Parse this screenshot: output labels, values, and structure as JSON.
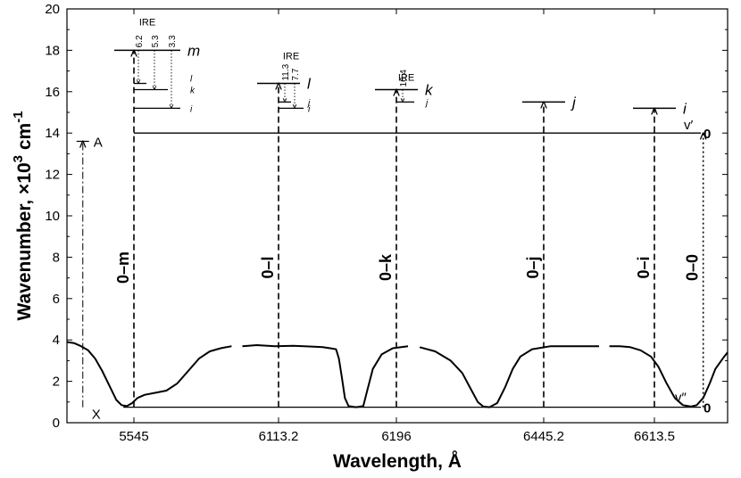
{
  "chart_data": {
    "type": "line",
    "xlabel": "Wavelength, Å",
    "ylabel_main": "Wavenumber, ×10",
    "ylabel_exp": "3",
    "ylabel_unit": " cm",
    "ylabel_unit_exp": "-1",
    "ylim": [
      0,
      20
    ],
    "yticks": [
      "0",
      "2",
      "4",
      "6",
      "8",
      "10",
      "12",
      "14",
      "16",
      "18",
      "20"
    ],
    "xticks": [
      {
        "pos": 1,
        "label": "5545"
      },
      {
        "pos": 3,
        "label": "6113.2"
      },
      {
        "pos": 4.6,
        "label": "6196"
      },
      {
        "pos": 6.5,
        "label": "6445.2"
      },
      {
        "pos": 8.1,
        "label": "6613.5"
      }
    ],
    "xlim": [
      -0.9,
      9.0
    ],
    "state_labels": {
      "upper": "A",
      "lower": "X"
    },
    "v_labels": {
      "upper": "v′",
      "lower": "v″",
      "upper_zero": "0",
      "lower_zero": "0"
    },
    "upper_level_y": 14.0,
    "lower_level_y": 0.75,
    "a_state_y": 13.6,
    "levels": [
      {
        "name": "m",
        "y": 18.0,
        "x_center": 1
      },
      {
        "name": "l",
        "y": 16.4,
        "x_center": 3
      },
      {
        "name": "k",
        "y": 16.1,
        "x_center": 4.6
      },
      {
        "name": "j",
        "y": 15.5,
        "x_center": 6.5
      },
      {
        "name": "i",
        "y": 15.2,
        "x_center": 8.1
      }
    ],
    "transitions": [
      {
        "label": "0–m",
        "x": 1,
        "y_top": 18.0
      },
      {
        "label": "0–l",
        "x": 3,
        "y_top": 16.4
      },
      {
        "label": "0–k",
        "x": 4.6,
        "y_top": 16.1
      },
      {
        "label": "0–j",
        "x": 6.5,
        "y_top": 15.5
      },
      {
        "label": "0–i",
        "x": 8.1,
        "y_top": 15.2
      },
      {
        "label": "0–0",
        "x": 8.7,
        "y_top": 14.0
      }
    ],
    "ire_groups": [
      {
        "label": "IRE",
        "values": [
          "6.2",
          "5.3",
          "3.3"
        ],
        "sublevels": [
          {
            "name": "l",
            "y": 16.4
          },
          {
            "name": "k",
            "y": 16.1
          },
          {
            "name": "i",
            "y": 15.2
          }
        ]
      },
      {
        "label": "IRE",
        "values": [
          "11.3",
          "7.7"
        ],
        "sublevels": [
          {
            "name": "j",
            "y": 15.5
          },
          {
            "name": "i",
            "y": 15.2
          }
        ]
      },
      {
        "label": "IRE",
        "values": [
          "16.4"
        ],
        "sublevels": [
          {
            "name": "j",
            "y": 15.5
          }
        ]
      }
    ],
    "spectrum": {
      "segments": [
        [
          [
            -0.9,
            3.9
          ],
          [
            -0.7,
            3.85
          ],
          [
            -0.5,
            3.7
          ],
          [
            -0.3,
            3.5
          ],
          [
            -0.1,
            3.1
          ],
          [
            0.1,
            2.5
          ],
          [
            0.3,
            1.8
          ],
          [
            0.5,
            1.1
          ],
          [
            0.65,
            0.85
          ],
          [
            0.8,
            0.8
          ],
          [
            0.95,
            0.95
          ],
          [
            1.05,
            1.2
          ],
          [
            1.15,
            1.35
          ],
          [
            1.3,
            1.45
          ],
          [
            1.45,
            1.55
          ],
          [
            1.6,
            1.9
          ],
          [
            1.75,
            2.5
          ],
          [
            1.9,
            3.1
          ],
          [
            2.05,
            3.45
          ],
          [
            2.2,
            3.6
          ],
          [
            2.35,
            3.7
          ]
        ],
        [
          [
            2.5,
            3.7
          ],
          [
            2.7,
            3.75
          ],
          [
            2.95,
            3.7
          ],
          [
            3.2,
            3.72
          ],
          [
            3.45,
            3.68
          ],
          [
            3.6,
            3.65
          ],
          [
            3.7,
            3.6
          ],
          [
            3.78,
            3.55
          ],
          [
            3.82,
            3.1
          ],
          [
            3.86,
            2.2
          ],
          [
            3.9,
            1.2
          ],
          [
            3.95,
            0.8
          ],
          [
            4.05,
            0.75
          ],
          [
            4.15,
            0.8
          ],
          [
            4.2,
            1.5
          ],
          [
            4.28,
            2.6
          ],
          [
            4.4,
            3.3
          ],
          [
            4.55,
            3.6
          ],
          [
            4.75,
            3.7
          ]
        ],
        [
          [
            4.9,
            3.65
          ],
          [
            5.1,
            3.45
          ],
          [
            5.3,
            3.0
          ],
          [
            5.45,
            2.4
          ],
          [
            5.55,
            1.7
          ],
          [
            5.65,
            1.0
          ],
          [
            5.72,
            0.78
          ],
          [
            5.8,
            0.75
          ],
          [
            5.9,
            0.95
          ],
          [
            6.0,
            1.7
          ],
          [
            6.1,
            2.6
          ],
          [
            6.2,
            3.2
          ],
          [
            6.35,
            3.55
          ],
          [
            6.6,
            3.7
          ],
          [
            7.0,
            3.7
          ],
          [
            7.3,
            3.7
          ]
        ],
        [
          [
            7.45,
            3.7
          ],
          [
            7.6,
            3.7
          ],
          [
            7.75,
            3.65
          ],
          [
            7.9,
            3.5
          ],
          [
            8.05,
            3.2
          ],
          [
            8.15,
            2.7
          ],
          [
            8.25,
            1.9
          ],
          [
            8.35,
            1.2
          ],
          [
            8.45,
            0.85
          ],
          [
            8.55,
            0.78
          ],
          [
            8.62,
            0.85
          ],
          [
            8.7,
            1.2
          ],
          [
            8.78,
            1.9
          ],
          [
            8.85,
            2.6
          ],
          [
            8.95,
            3.15
          ],
          [
            9.0,
            3.4
          ]
        ]
      ]
    }
  }
}
